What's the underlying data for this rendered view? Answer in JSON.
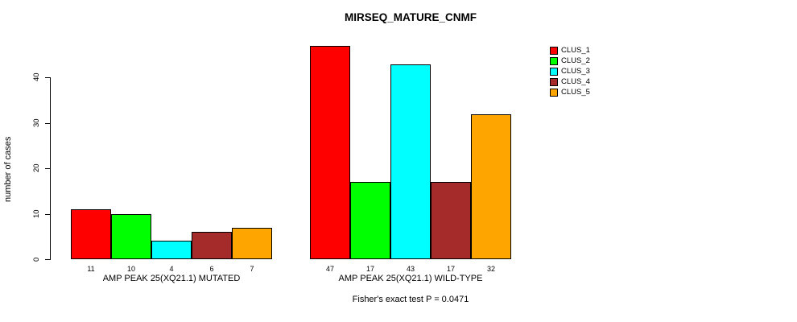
{
  "page": {
    "background": "#ffffff"
  },
  "chart_data": {
    "type": "bar",
    "title": "MIRSEQ_MATURE_CNMF",
    "ylabel": "number of cases",
    "xlabel": "",
    "categories": [
      "AMP PEAK 25(XQ21.1) MUTATED",
      "AMP PEAK 25(XQ21.1) WILD-TYPE"
    ],
    "series": [
      {
        "name": "CLUS_1",
        "color": "#FF0000",
        "values": [
          11,
          47
        ]
      },
      {
        "name": "CLUS_2",
        "color": "#00FF00",
        "values": [
          10,
          17
        ]
      },
      {
        "name": "CLUS_3",
        "color": "#00FFFF",
        "values": [
          4,
          43
        ]
      },
      {
        "name": "CLUS_4",
        "color": "#A52A2A",
        "values": [
          6,
          17
        ]
      },
      {
        "name": "CLUS_5",
        "color": "#FFA500",
        "values": [
          7,
          32
        ]
      }
    ],
    "bar_value_labels": [
      [
        11,
        10,
        4,
        6,
        7
      ],
      [
        47,
        17,
        43,
        17,
        32
      ]
    ],
    "yticks": [
      0,
      10,
      20,
      30,
      40
    ],
    "ylim": [
      0,
      47
    ],
    "grid": false,
    "legend_position": "top-right",
    "footnote": "Fisher's exact test P = 0.0471"
  }
}
